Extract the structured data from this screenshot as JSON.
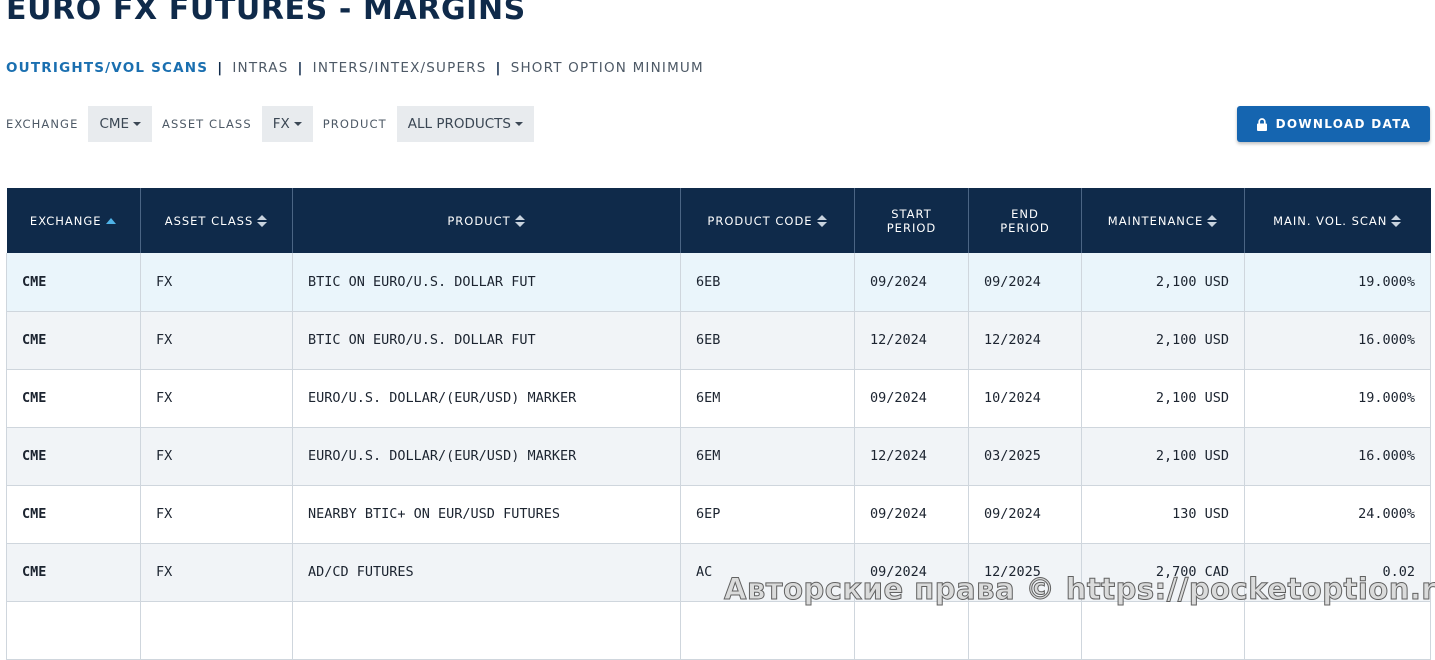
{
  "page": {
    "title": "EURO FX FUTURES - MARGINS"
  },
  "tabs": [
    {
      "label": "OUTRIGHTS/VOL SCANS",
      "active": true
    },
    {
      "label": "INTRAS",
      "active": false
    },
    {
      "label": "INTERS/INTEX/SUPERS",
      "active": false
    },
    {
      "label": "SHORT OPTION MINIMUM",
      "active": false
    }
  ],
  "tab_separator": "|",
  "filters": {
    "exchange": {
      "label": "EXCHANGE",
      "value": "CME"
    },
    "asset_class": {
      "label": "ASSET CLASS",
      "value": "FX"
    },
    "product": {
      "label": "PRODUCT",
      "value": "ALL PRODUCTS"
    }
  },
  "download": {
    "label": "DOWNLOAD DATA",
    "icon": "lock-icon"
  },
  "table": {
    "columns": [
      {
        "label": "EXCHANGE",
        "sort": "asc"
      },
      {
        "label": "ASSET CLASS",
        "sort": "both"
      },
      {
        "label": "PRODUCT",
        "sort": "both"
      },
      {
        "label": "PRODUCT CODE",
        "sort": "both"
      },
      {
        "label": "START PERIOD",
        "sort": "none"
      },
      {
        "label": "END PERIOD",
        "sort": "none"
      },
      {
        "label": "MAINTENANCE",
        "sort": "both"
      },
      {
        "label": "MAIN. VOL. SCAN",
        "sort": "both"
      }
    ],
    "rows": [
      [
        "CME",
        "FX",
        "BTIC ON EURO/U.S. DOLLAR FUT",
        "6EB",
        "09/2024",
        "09/2024",
        "2,100 USD",
        "19.000%"
      ],
      [
        "CME",
        "FX",
        "BTIC ON EURO/U.S. DOLLAR FUT",
        "6EB",
        "12/2024",
        "12/2024",
        "2,100 USD",
        "16.000%"
      ],
      [
        "CME",
        "FX",
        "EURO/U.S. DOLLAR/(EUR/USD) MARKER",
        "6EM",
        "09/2024",
        "10/2024",
        "2,100 USD",
        "19.000%"
      ],
      [
        "CME",
        "FX",
        "EURO/U.S. DOLLAR/(EUR/USD) MARKER",
        "6EM",
        "12/2024",
        "03/2025",
        "2,100 USD",
        "16.000%"
      ],
      [
        "CME",
        "FX",
        "NEARBY BTIC+ ON EUR/USD FUTURES",
        "6EP",
        "09/2024",
        "09/2024",
        "130 USD",
        "24.000%"
      ],
      [
        "CME",
        "FX",
        "AD/CD FUTURES",
        "AC",
        "09/2024",
        "12/2025",
        "2,700 CAD",
        "0.02"
      ],
      [
        "",
        "",
        "",
        "",
        "",
        "",
        "",
        ""
      ]
    ]
  },
  "watermark": "Авторские права © https://pocketoption.ru",
  "colors": {
    "header_bg": "#0f2a4a",
    "accent": "#1a6fb0",
    "button": "#1565b0",
    "sort_active": "#4fb3e8"
  }
}
